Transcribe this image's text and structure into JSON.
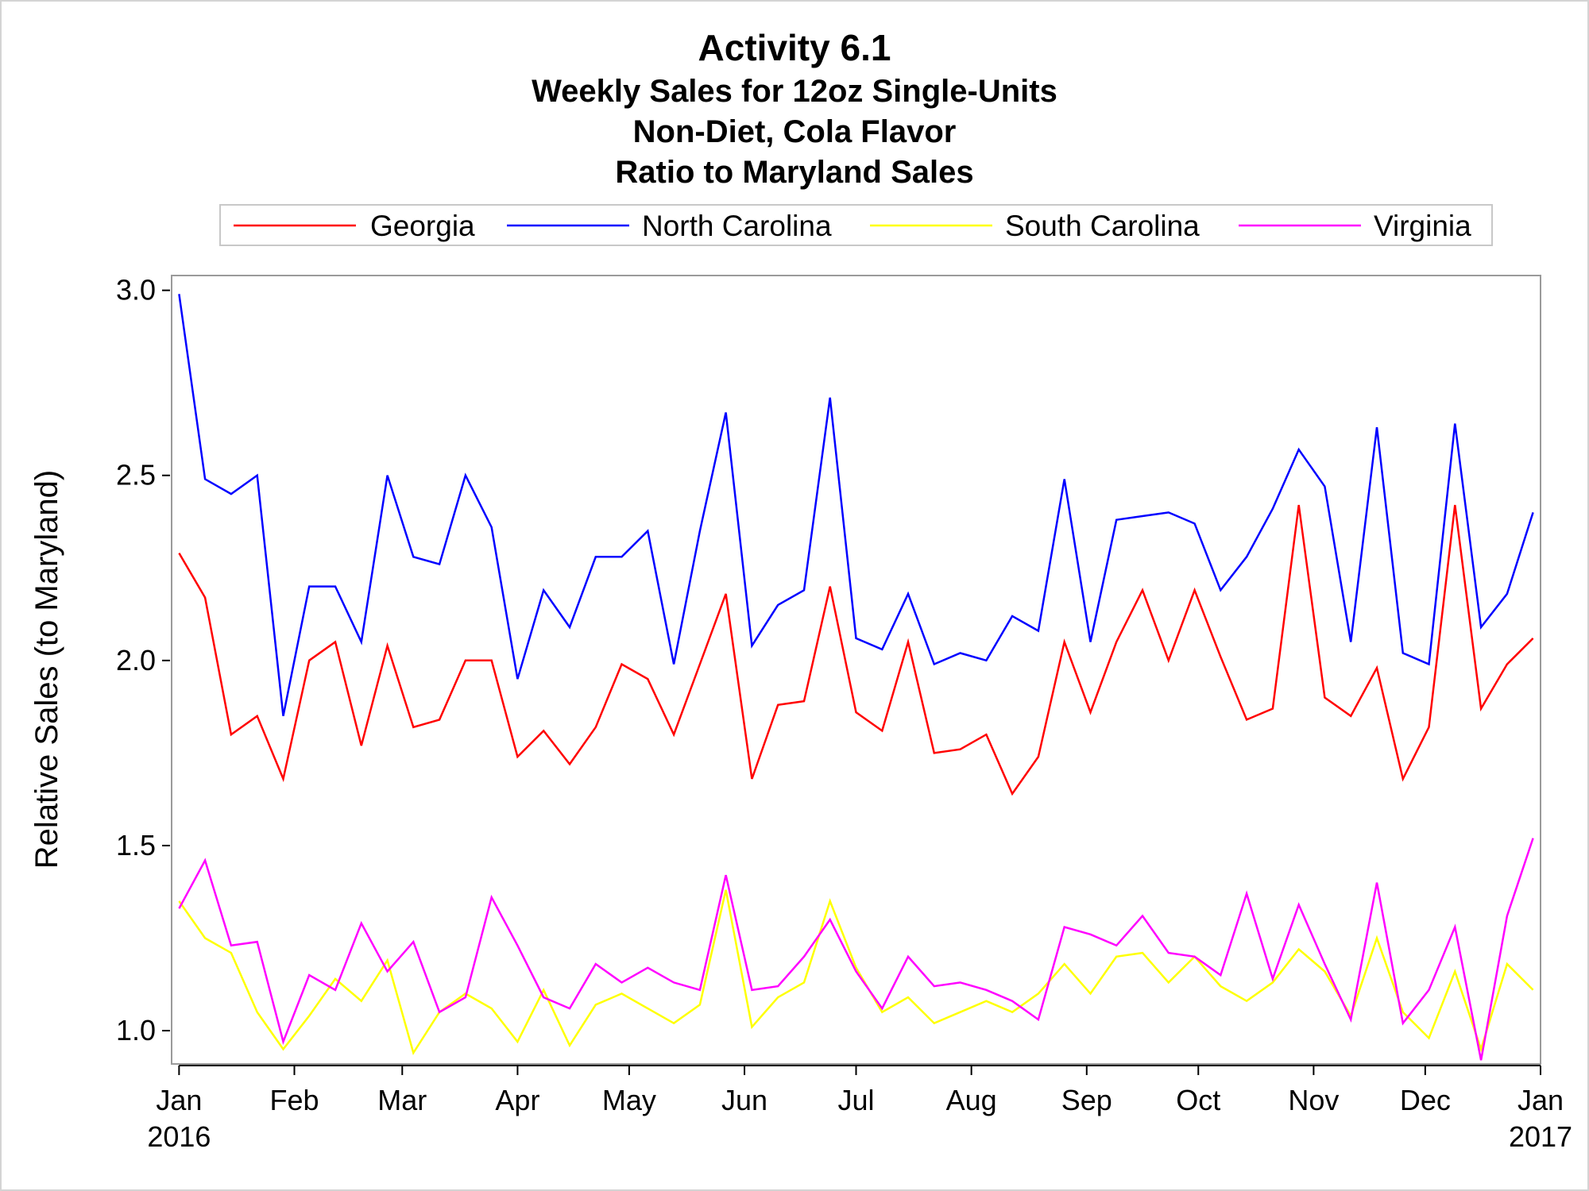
{
  "chart_data": {
    "type": "line",
    "title": "Activity 6.1",
    "subtitles": [
      "Weekly Sales for 12oz Single-Units",
      "Non-Diet, Cola Flavor",
      "Ratio to Maryland Sales"
    ],
    "ylabel": "Relative Sales (to Maryland)",
    "xlabel": "",
    "ylim": [
      0.91,
      3.04
    ],
    "yticks": [
      {
        "label": "1.0",
        "value": 1.0
      },
      {
        "label": "1.5",
        "value": 1.5
      },
      {
        "label": "2.0",
        "value": 2.0
      },
      {
        "label": "2.5",
        "value": 2.5
      },
      {
        "label": "3.0",
        "value": 3.0
      }
    ],
    "x_unit": "day of year",
    "xlim": [
      -2,
      366
    ],
    "xticks": [
      {
        "label": "Jan",
        "sublabel": "2016",
        "day": 0
      },
      {
        "label": "Feb",
        "day": 31
      },
      {
        "label": "Mar",
        "day": 60
      },
      {
        "label": "Apr",
        "day": 91
      },
      {
        "label": "May",
        "day": 121
      },
      {
        "label": "Jun",
        "day": 152
      },
      {
        "label": "Jul",
        "day": 182
      },
      {
        "label": "Aug",
        "day": 213
      },
      {
        "label": "Sep",
        "day": 244
      },
      {
        "label": "Oct",
        "day": 274
      },
      {
        "label": "Nov",
        "day": 305
      },
      {
        "label": "Dec",
        "day": 335
      },
      {
        "label": "Jan",
        "sublabel": "2017",
        "day": 366
      }
    ],
    "x_first_week_day": 0,
    "x_week_step_days": 7,
    "legend_position": "top",
    "series": [
      {
        "name": "Georgia",
        "color": "#ff0000",
        "values": [
          2.29,
          2.17,
          1.8,
          1.85,
          1.68,
          2.0,
          2.05,
          1.77,
          2.04,
          1.82,
          1.84,
          2.0,
          2.0,
          1.74,
          1.81,
          1.72,
          1.82,
          1.99,
          1.95,
          1.8,
          1.99,
          2.18,
          1.68,
          1.88,
          1.89,
          2.2,
          1.86,
          1.81,
          2.05,
          1.75,
          1.76,
          1.8,
          1.64,
          1.74,
          2.05,
          1.86,
          2.05,
          2.19,
          2.0,
          2.19,
          2.01,
          1.84,
          1.87,
          2.42,
          1.9,
          1.85,
          1.98,
          1.68,
          1.82,
          2.42,
          1.87,
          1.99,
          2.06
        ]
      },
      {
        "name": "North Carolina",
        "color": "#0000ff",
        "values": [
          2.99,
          2.49,
          2.45,
          2.5,
          1.85,
          2.2,
          2.2,
          2.05,
          2.5,
          2.28,
          2.26,
          2.5,
          2.36,
          1.95,
          2.19,
          2.09,
          2.28,
          2.28,
          2.35,
          1.99,
          2.35,
          2.67,
          2.04,
          2.15,
          2.19,
          2.71,
          2.06,
          2.03,
          2.18,
          1.99,
          2.02,
          2.0,
          2.12,
          2.08,
          2.49,
          2.05,
          2.38,
          2.39,
          2.4,
          2.37,
          2.19,
          2.28,
          2.41,
          2.57,
          2.47,
          2.05,
          2.63,
          2.02,
          1.99,
          2.64,
          2.09,
          2.18,
          2.4
        ]
      },
      {
        "name": "South Carolina",
        "color": "#ffff00",
        "values": [
          1.35,
          1.25,
          1.21,
          1.05,
          0.95,
          1.04,
          1.14,
          1.08,
          1.19,
          0.94,
          1.05,
          1.1,
          1.06,
          0.97,
          1.11,
          0.96,
          1.07,
          1.1,
          1.06,
          1.02,
          1.07,
          1.38,
          1.01,
          1.09,
          1.13,
          1.35,
          1.17,
          1.05,
          1.09,
          1.02,
          1.05,
          1.08,
          1.05,
          1.1,
          1.18,
          1.1,
          1.2,
          1.21,
          1.13,
          1.2,
          1.12,
          1.08,
          1.13,
          1.22,
          1.16,
          1.04,
          1.25,
          1.05,
          0.98,
          1.16,
          0.95,
          1.18,
          1.11
        ]
      },
      {
        "name": "Virginia",
        "color": "#ff00ff",
        "values": [
          1.33,
          1.46,
          1.23,
          1.24,
          0.97,
          1.15,
          1.11,
          1.29,
          1.16,
          1.24,
          1.05,
          1.09,
          1.36,
          1.23,
          1.09,
          1.06,
          1.18,
          1.13,
          1.17,
          1.13,
          1.11,
          1.42,
          1.11,
          1.12,
          1.2,
          1.3,
          1.16,
          1.06,
          1.2,
          1.12,
          1.13,
          1.11,
          1.08,
          1.03,
          1.28,
          1.26,
          1.23,
          1.31,
          1.21,
          1.2,
          1.15,
          1.37,
          1.14,
          1.34,
          1.18,
          1.03,
          1.4,
          1.02,
          1.11,
          1.28,
          0.92,
          1.31,
          1.52
        ]
      }
    ]
  }
}
